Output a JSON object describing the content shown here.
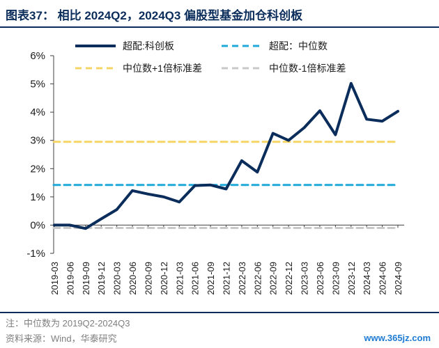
{
  "header": {
    "title": "图表37： 相比 2024Q2，2024Q3 偏股型基金加仓科创板"
  },
  "footer": {
    "note": "注：中位数为 2019Q2-2024Q3",
    "source": "资料来源：Wind，华泰研究",
    "watermark": "www.365jz.com"
  },
  "chart_data": {
    "type": "line",
    "title": "",
    "xlabel": "",
    "ylabel": "",
    "ylim": [
      -1,
      6
    ],
    "yticks": [
      -1,
      0,
      1,
      2,
      3,
      4,
      5,
      6
    ],
    "ytick_labels": [
      "-1%",
      "0%",
      "1%",
      "2%",
      "3%",
      "4%",
      "5%",
      "6%"
    ],
    "grid": false,
    "legend_position": "top",
    "categories": [
      "2019-03",
      "2019-06",
      "2019-09",
      "2019-12",
      "2020-03",
      "2020-06",
      "2020-09",
      "2020-12",
      "2021-03",
      "2021-06",
      "2021-09",
      "2021-12",
      "2022-03",
      "2022-06",
      "2022-09",
      "2022-12",
      "2023-03",
      "2023-06",
      "2023-09",
      "2023-12",
      "2024-03",
      "2024-06",
      "2024-09"
    ],
    "series": [
      {
        "name": "超配:科创板",
        "style": "solid",
        "color": "#0b2d5b",
        "values": [
          0.0,
          0.0,
          -0.12,
          0.22,
          0.55,
          1.22,
          1.1,
          1.0,
          0.82,
          1.4,
          1.42,
          1.28,
          2.28,
          1.88,
          3.25,
          3.0,
          3.45,
          4.05,
          3.2,
          5.02,
          3.75,
          3.68,
          4.03
        ]
      },
      {
        "name": "超配：中位数",
        "style": "dashed",
        "color": "#1fa9d9",
        "values": [
          1.42,
          1.42,
          1.42,
          1.42,
          1.42,
          1.42,
          1.42,
          1.42,
          1.42,
          1.42,
          1.42,
          1.42,
          1.42,
          1.42,
          1.42,
          1.42,
          1.42,
          1.42,
          1.42,
          1.42,
          1.42,
          1.42,
          1.42
        ]
      },
      {
        "name": "中位数+1倍标准差",
        "style": "dashed",
        "color": "#f5d565",
        "values": [
          2.95,
          2.95,
          2.95,
          2.95,
          2.95,
          2.95,
          2.95,
          2.95,
          2.95,
          2.95,
          2.95,
          2.95,
          2.95,
          2.95,
          2.95,
          2.95,
          2.95,
          2.95,
          2.95,
          2.95,
          2.95,
          2.95,
          2.95
        ]
      },
      {
        "name": "中位数-1倍标准差",
        "style": "dashed",
        "color": "#c8c8c8",
        "values": [
          -0.1,
          -0.1,
          -0.1,
          -0.1,
          -0.1,
          -0.1,
          -0.1,
          -0.1,
          -0.1,
          -0.1,
          -0.1,
          -0.1,
          -0.1,
          -0.1,
          -0.1,
          -0.1,
          -0.1,
          -0.1,
          -0.1,
          -0.1,
          -0.1,
          -0.1,
          -0.1
        ]
      }
    ]
  }
}
